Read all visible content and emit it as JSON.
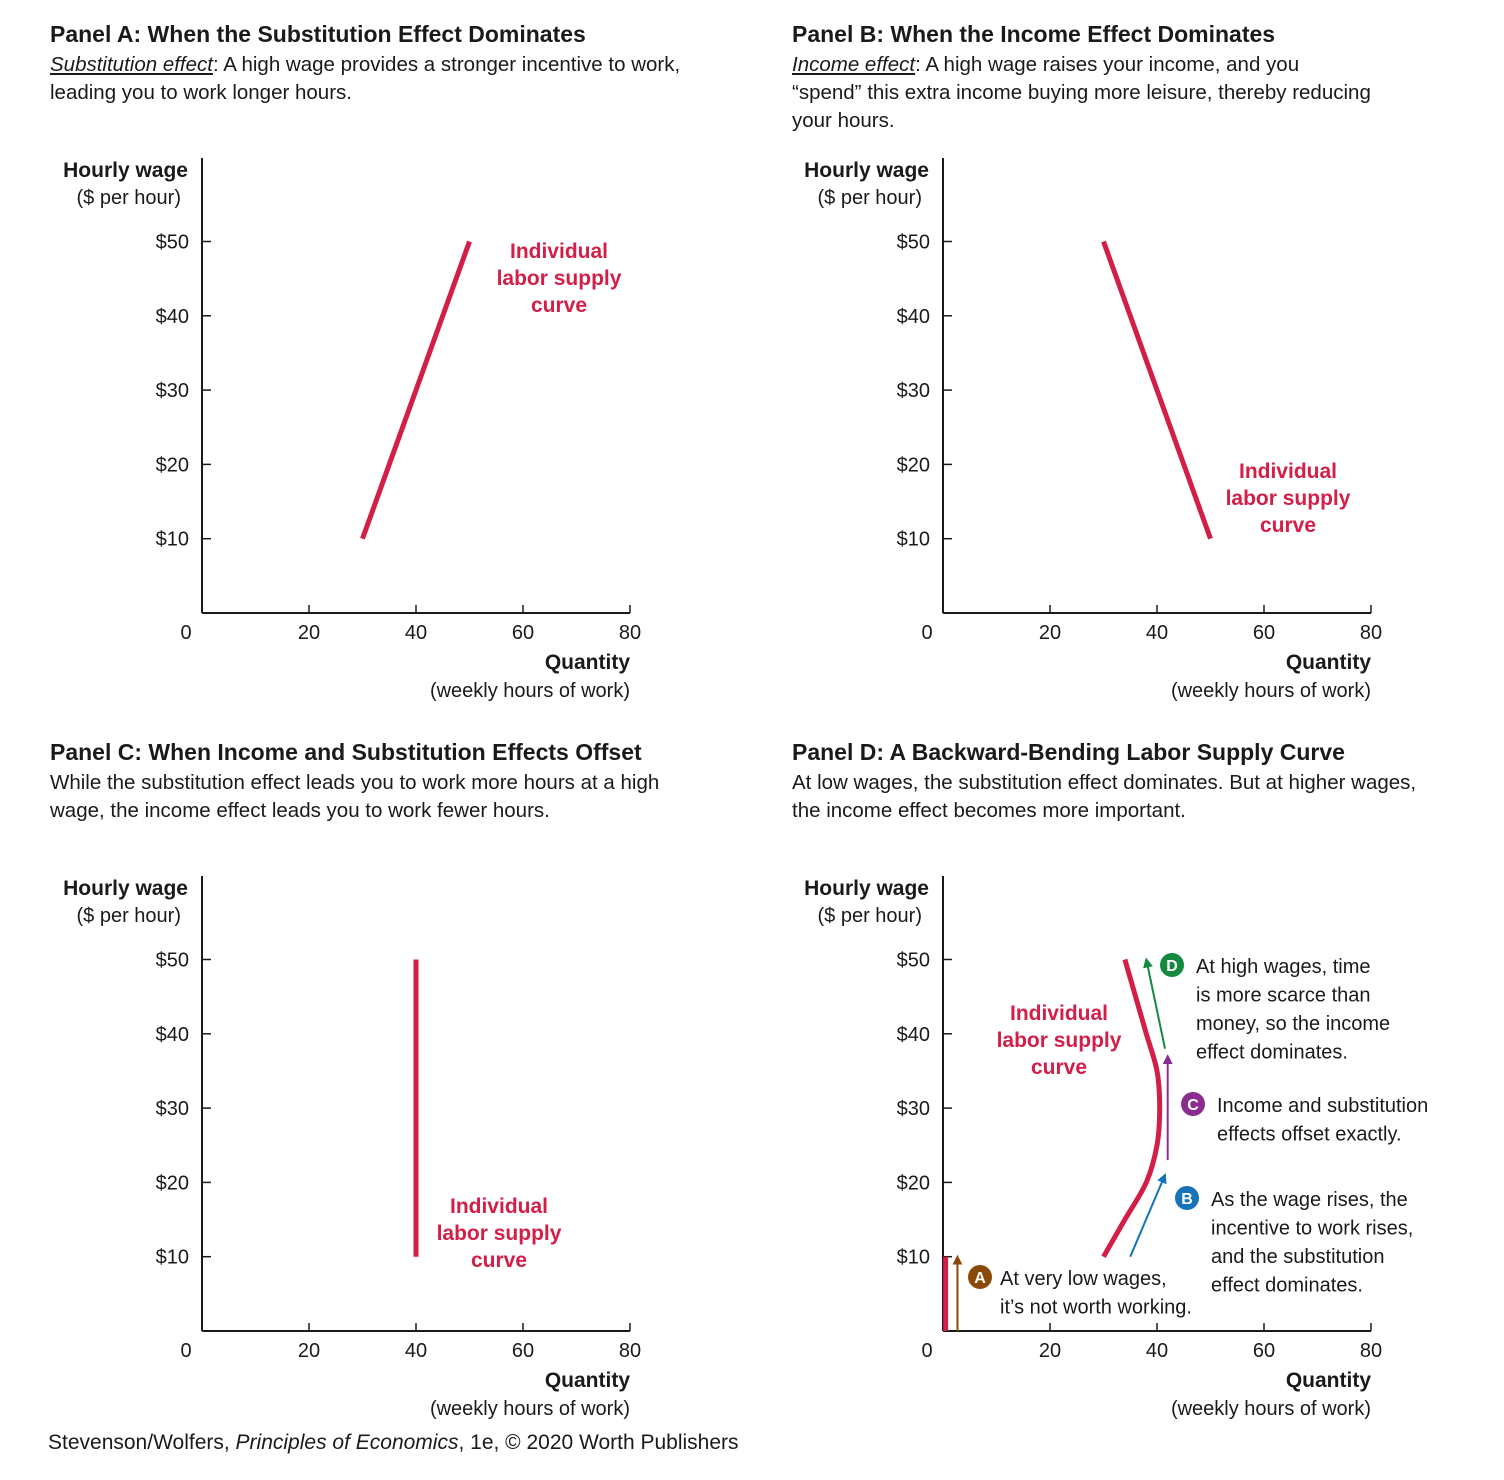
{
  "colors": {
    "curve": "#d31f48",
    "axis": "#1a1a1a",
    "A": "#8a4a07",
    "B": "#1673b8",
    "C": "#8c2c91",
    "D": "#138a3f"
  },
  "panels": [
    {
      "title": "Panel A: When the Substitution Effect Dominates",
      "lead": "Substitution effect",
      "desc": ": A high wage provides a stronger incentive to work, leading you to work longer hours."
    },
    {
      "title": "Panel B: When the Income Effect Dominates",
      "lead": "Income effect",
      "desc": ": A high wage raises your income, and you “spend” this extra income buying more leisure, thereby reducing your hours."
    },
    {
      "title": "Panel C: When Income and Substitution Effects Offset",
      "lead": "",
      "desc": "While the substitution effect leads you to work more hours at a high wage, the income effect leads you to work fewer hours."
    },
    {
      "title": "Panel D: A Backward-Bending Labor Supply Curve",
      "lead": "",
      "desc": "At low wages, the substitution effect dominates. But at higher wages, the income effect becomes more important."
    }
  ],
  "footer": {
    "authors": "Stevenson/Wolfers, ",
    "book": "Principles of Economics",
    "rest": ", 1e, © 2020 Worth Publishers"
  },
  "chart_data": [
    {
      "type": "line",
      "ylabel": "Hourly wage",
      "yunit": "($ per hour)",
      "xlabel": "Quantity",
      "xunit": "(weekly hours of work)",
      "xticks": [
        "0",
        "20",
        "40",
        "60",
        "80"
      ],
      "yticks": [
        "$10",
        "$20",
        "$30",
        "$40",
        "$50"
      ],
      "xlim": [
        0,
        80
      ],
      "ylim": [
        0,
        55
      ],
      "series": [
        {
          "name": "Individual labor supply curve",
          "x": [
            30,
            50
          ],
          "y": [
            10,
            50
          ]
        }
      ]
    },
    {
      "type": "line",
      "ylabel": "Hourly wage",
      "yunit": "($ per hour)",
      "xlabel": "Quantity",
      "xunit": "(weekly hours of work)",
      "xticks": [
        "0",
        "20",
        "40",
        "60",
        "80"
      ],
      "yticks": [
        "$10",
        "$20",
        "$30",
        "$40",
        "$50"
      ],
      "xlim": [
        0,
        80
      ],
      "ylim": [
        0,
        55
      ],
      "series": [
        {
          "name": "Individual labor supply curve",
          "x": [
            30,
            50
          ],
          "y": [
            50,
            10
          ]
        }
      ]
    },
    {
      "type": "line",
      "ylabel": "Hourly wage",
      "yunit": "($ per hour)",
      "xlabel": "Quantity",
      "xunit": "(weekly hours of work)",
      "xticks": [
        "0",
        "20",
        "40",
        "60",
        "80"
      ],
      "yticks": [
        "$10",
        "$20",
        "$30",
        "$40",
        "$50"
      ],
      "xlim": [
        0,
        80
      ],
      "ylim": [
        0,
        55
      ],
      "series": [
        {
          "name": "Individual labor supply curve",
          "x": [
            40,
            40
          ],
          "y": [
            10,
            50
          ]
        }
      ]
    },
    {
      "type": "line",
      "ylabel": "Hourly wage",
      "yunit": "($ per hour)",
      "xlabel": "Quantity",
      "xunit": "(weekly hours of work)",
      "xticks": [
        "0",
        "20",
        "40",
        "60",
        "80"
      ],
      "yticks": [
        "$10",
        "$20",
        "$30",
        "$40",
        "$50"
      ],
      "xlim": [
        0,
        80
      ],
      "ylim": [
        0,
        55
      ],
      "series": [
        {
          "name": "Individual labor supply curve",
          "x": [
            30,
            34,
            38,
            40,
            40.5,
            40,
            38,
            36,
            34
          ],
          "y": [
            10,
            15,
            20,
            25,
            30,
            35,
            40,
            45,
            50
          ]
        },
        {
          "name": "Individual labor supply curve",
          "x": [
            0.5,
            0.5
          ],
          "y": [
            0,
            10
          ]
        }
      ],
      "annotations": [
        {
          "id": "A",
          "lines": [
            "At very low wages,",
            "it’s not worth working."
          ],
          "arrow": {
            "x1": 2.7,
            "y1": 0,
            "x2": 2.7,
            "y2": 10
          }
        },
        {
          "id": "B",
          "lines": [
            "As the wage rises, the",
            "incentive to work rises,",
            "and the substitution",
            "effect dominates."
          ],
          "arrow": {
            "x1": 35,
            "y1": 10,
            "x2": 41.5,
            "y2": 21
          }
        },
        {
          "id": "C",
          "lines": [
            "Income and substitution",
            "effects offset exactly."
          ],
          "arrow": {
            "x1": 42,
            "y1": 23,
            "x2": 42,
            "y2": 37
          }
        },
        {
          "id": "D",
          "lines": [
            "At high wages, time",
            "is more scarce than",
            "money, so the income",
            "effect dominates."
          ],
          "arrow": {
            "x1": 41.5,
            "y1": 38,
            "x2": 38,
            "y2": 50
          }
        }
      ]
    }
  ]
}
